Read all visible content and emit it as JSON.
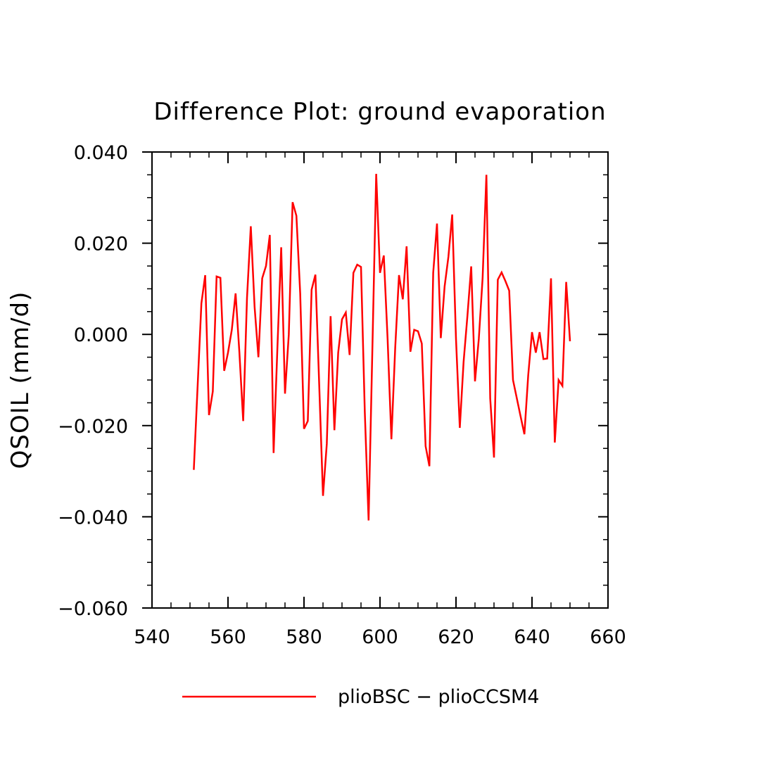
{
  "chart_data": {
    "type": "line",
    "title": "Difference Plot: ground evaporation",
    "xlabel": "",
    "ylabel": "QSOIL  (mm/d)",
    "xlim": [
      540,
      660
    ],
    "ylim": [
      -0.06,
      0.04
    ],
    "xticks": [
      540,
      560,
      580,
      600,
      620,
      640,
      660
    ],
    "xtick_labels": [
      "540",
      "560",
      "580",
      "600",
      "620",
      "640",
      "660"
    ],
    "yticks": [
      -0.06,
      -0.04,
      -0.02,
      0.0,
      0.02,
      0.04
    ],
    "ytick_labels": [
      "−0.060",
      "−0.040",
      "−0.020",
      "0.000",
      "0.020",
      "0.040"
    ],
    "grid": false,
    "legend_position": "bottom",
    "series": [
      {
        "name": "plioBSC − plioCCSM4",
        "color": "#ff0000",
        "x": [
          551,
          553,
          554,
          555,
          556,
          557,
          558,
          559,
          560,
          561,
          562,
          563,
          564,
          565,
          566,
          567,
          568,
          569,
          570,
          571,
          572,
          573,
          574,
          575,
          576,
          577,
          578,
          579,
          580,
          581,
          582,
          583,
          584,
          585,
          586,
          587,
          588,
          589,
          590,
          591,
          592,
          593,
          594,
          595,
          596,
          597,
          598,
          599,
          600,
          601,
          602,
          603,
          604,
          605,
          606,
          607,
          608,
          609,
          610,
          611,
          612,
          613,
          614,
          615,
          616,
          617,
          618,
          619,
          620,
          621,
          622,
          623,
          624,
          625,
          626,
          627,
          628,
          629,
          630,
          631,
          632,
          633,
          634,
          635,
          636,
          637,
          638,
          639,
          640,
          641,
          642,
          643,
          644,
          645,
          646,
          647,
          648,
          649,
          650
        ],
        "y": [
          -0.0297,
          0.0068,
          0.013,
          -0.0177,
          -0.0125,
          0.0127,
          0.0124,
          -0.008,
          -0.004,
          0.001,
          0.009,
          -0.004,
          -0.019,
          0.008,
          0.0237,
          0.006,
          -0.005,
          0.0123,
          0.015,
          0.0218,
          -0.026,
          -0.003,
          0.0191,
          -0.013,
          0.0,
          0.029,
          0.026,
          0.009,
          -0.0207,
          -0.019,
          0.0098,
          0.0131,
          -0.011,
          -0.0354,
          -0.024,
          0.004,
          -0.021,
          -0.004,
          0.0033,
          0.0048,
          -0.0045,
          0.0135,
          0.0153,
          0.0148,
          -0.017,
          -0.0408,
          -0.003,
          0.0352,
          0.0135,
          0.0173,
          -0.001,
          -0.023,
          -0.003,
          0.013,
          0.0077,
          0.0193,
          -0.0038,
          0.001,
          0.0007,
          -0.002,
          -0.0245,
          -0.0289,
          0.0135,
          0.0243,
          -0.0008,
          0.0105,
          0.017,
          0.0263,
          -0.001,
          -0.0205,
          -0.006,
          0.004,
          0.0149,
          -0.0103,
          -0.001,
          0.0123,
          0.035,
          -0.014,
          -0.027,
          0.012,
          0.0136,
          0.0117,
          0.0096,
          -0.01,
          -0.014,
          -0.018,
          -0.0219,
          -0.009,
          0.0005,
          -0.004,
          0.0005,
          -0.0054,
          -0.0053,
          0.0123,
          -0.0237,
          -0.01,
          -0.0113,
          0.0115,
          -0.0015
        ]
      }
    ]
  }
}
